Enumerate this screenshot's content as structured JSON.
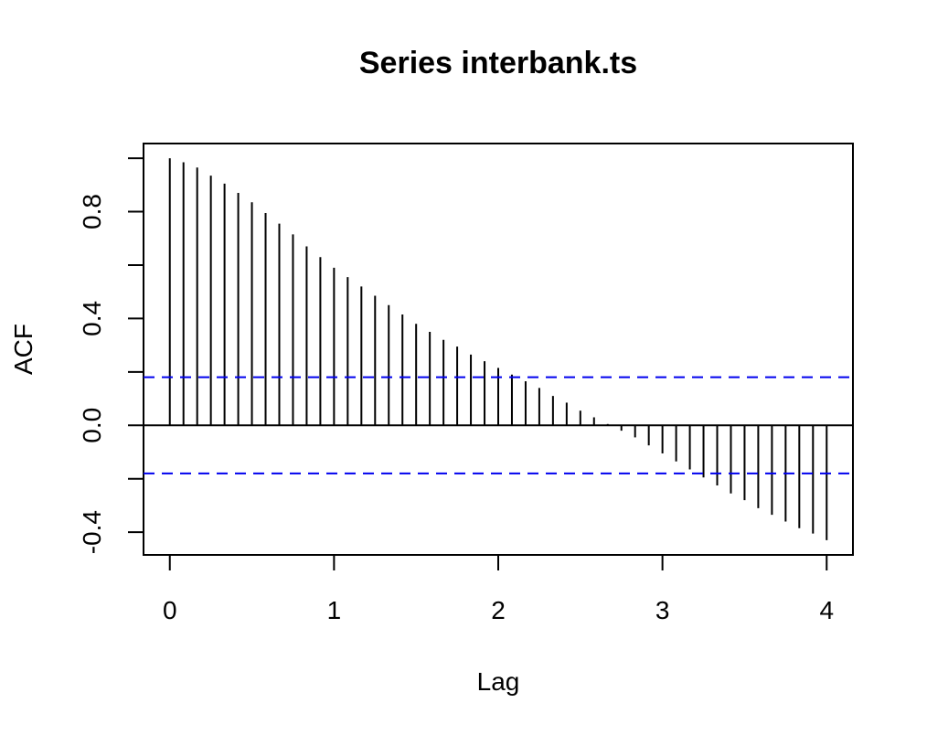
{
  "chart_data": {
    "type": "bar",
    "title": "Series  interbank.ts",
    "xlabel": "Lag",
    "ylabel": "ACF",
    "xlim": [
      -0.16,
      4.16
    ],
    "ylim": [
      -0.485,
      1.055
    ],
    "x_ticks": [
      0,
      1,
      2,
      3,
      4
    ],
    "x_tick_labels": [
      "0",
      "1",
      "2",
      "3",
      "4"
    ],
    "y_ticks": [
      -0.4,
      -0.2,
      0.0,
      0.2,
      0.4,
      0.6,
      0.8,
      1.0
    ],
    "y_tick_labels": [
      "-0.4",
      "",
      "0.0",
      "",
      "0.4",
      "",
      "0.8",
      ""
    ],
    "zero_line": 0.0,
    "ci_lines": [
      0.18,
      -0.18
    ],
    "ci_color": "#0000ee",
    "grid": false,
    "series": [
      {
        "lags": [
          0.0,
          0.0833,
          0.1667,
          0.25,
          0.3333,
          0.4167,
          0.5,
          0.5833,
          0.6667,
          0.75,
          0.8333,
          0.9167,
          1.0,
          1.0833,
          1.1667,
          1.25,
          1.3333,
          1.4167,
          1.5,
          1.5833,
          1.6667,
          1.75,
          1.8333,
          1.9167,
          2.0,
          2.0833,
          2.1667,
          2.25,
          2.3333,
          2.4167,
          2.5,
          2.5833,
          2.6667,
          2.75,
          2.8333,
          2.9167,
          3.0,
          3.0833,
          3.1667,
          3.25,
          3.3333,
          3.4167,
          3.5,
          3.5833,
          3.6667,
          3.75,
          3.8333,
          3.9167,
          4.0
        ],
        "values": [
          1.0,
          0.985,
          0.965,
          0.935,
          0.905,
          0.87,
          0.835,
          0.795,
          0.755,
          0.715,
          0.67,
          0.63,
          0.59,
          0.555,
          0.52,
          0.485,
          0.45,
          0.415,
          0.38,
          0.35,
          0.32,
          0.295,
          0.265,
          0.24,
          0.215,
          0.19,
          0.165,
          0.14,
          0.11,
          0.085,
          0.055,
          0.03,
          0.005,
          -0.02,
          -0.045,
          -0.075,
          -0.105,
          -0.135,
          -0.165,
          -0.195,
          -0.225,
          -0.255,
          -0.28,
          -0.31,
          -0.335,
          -0.36,
          -0.385,
          -0.405,
          -0.43
        ]
      }
    ]
  }
}
